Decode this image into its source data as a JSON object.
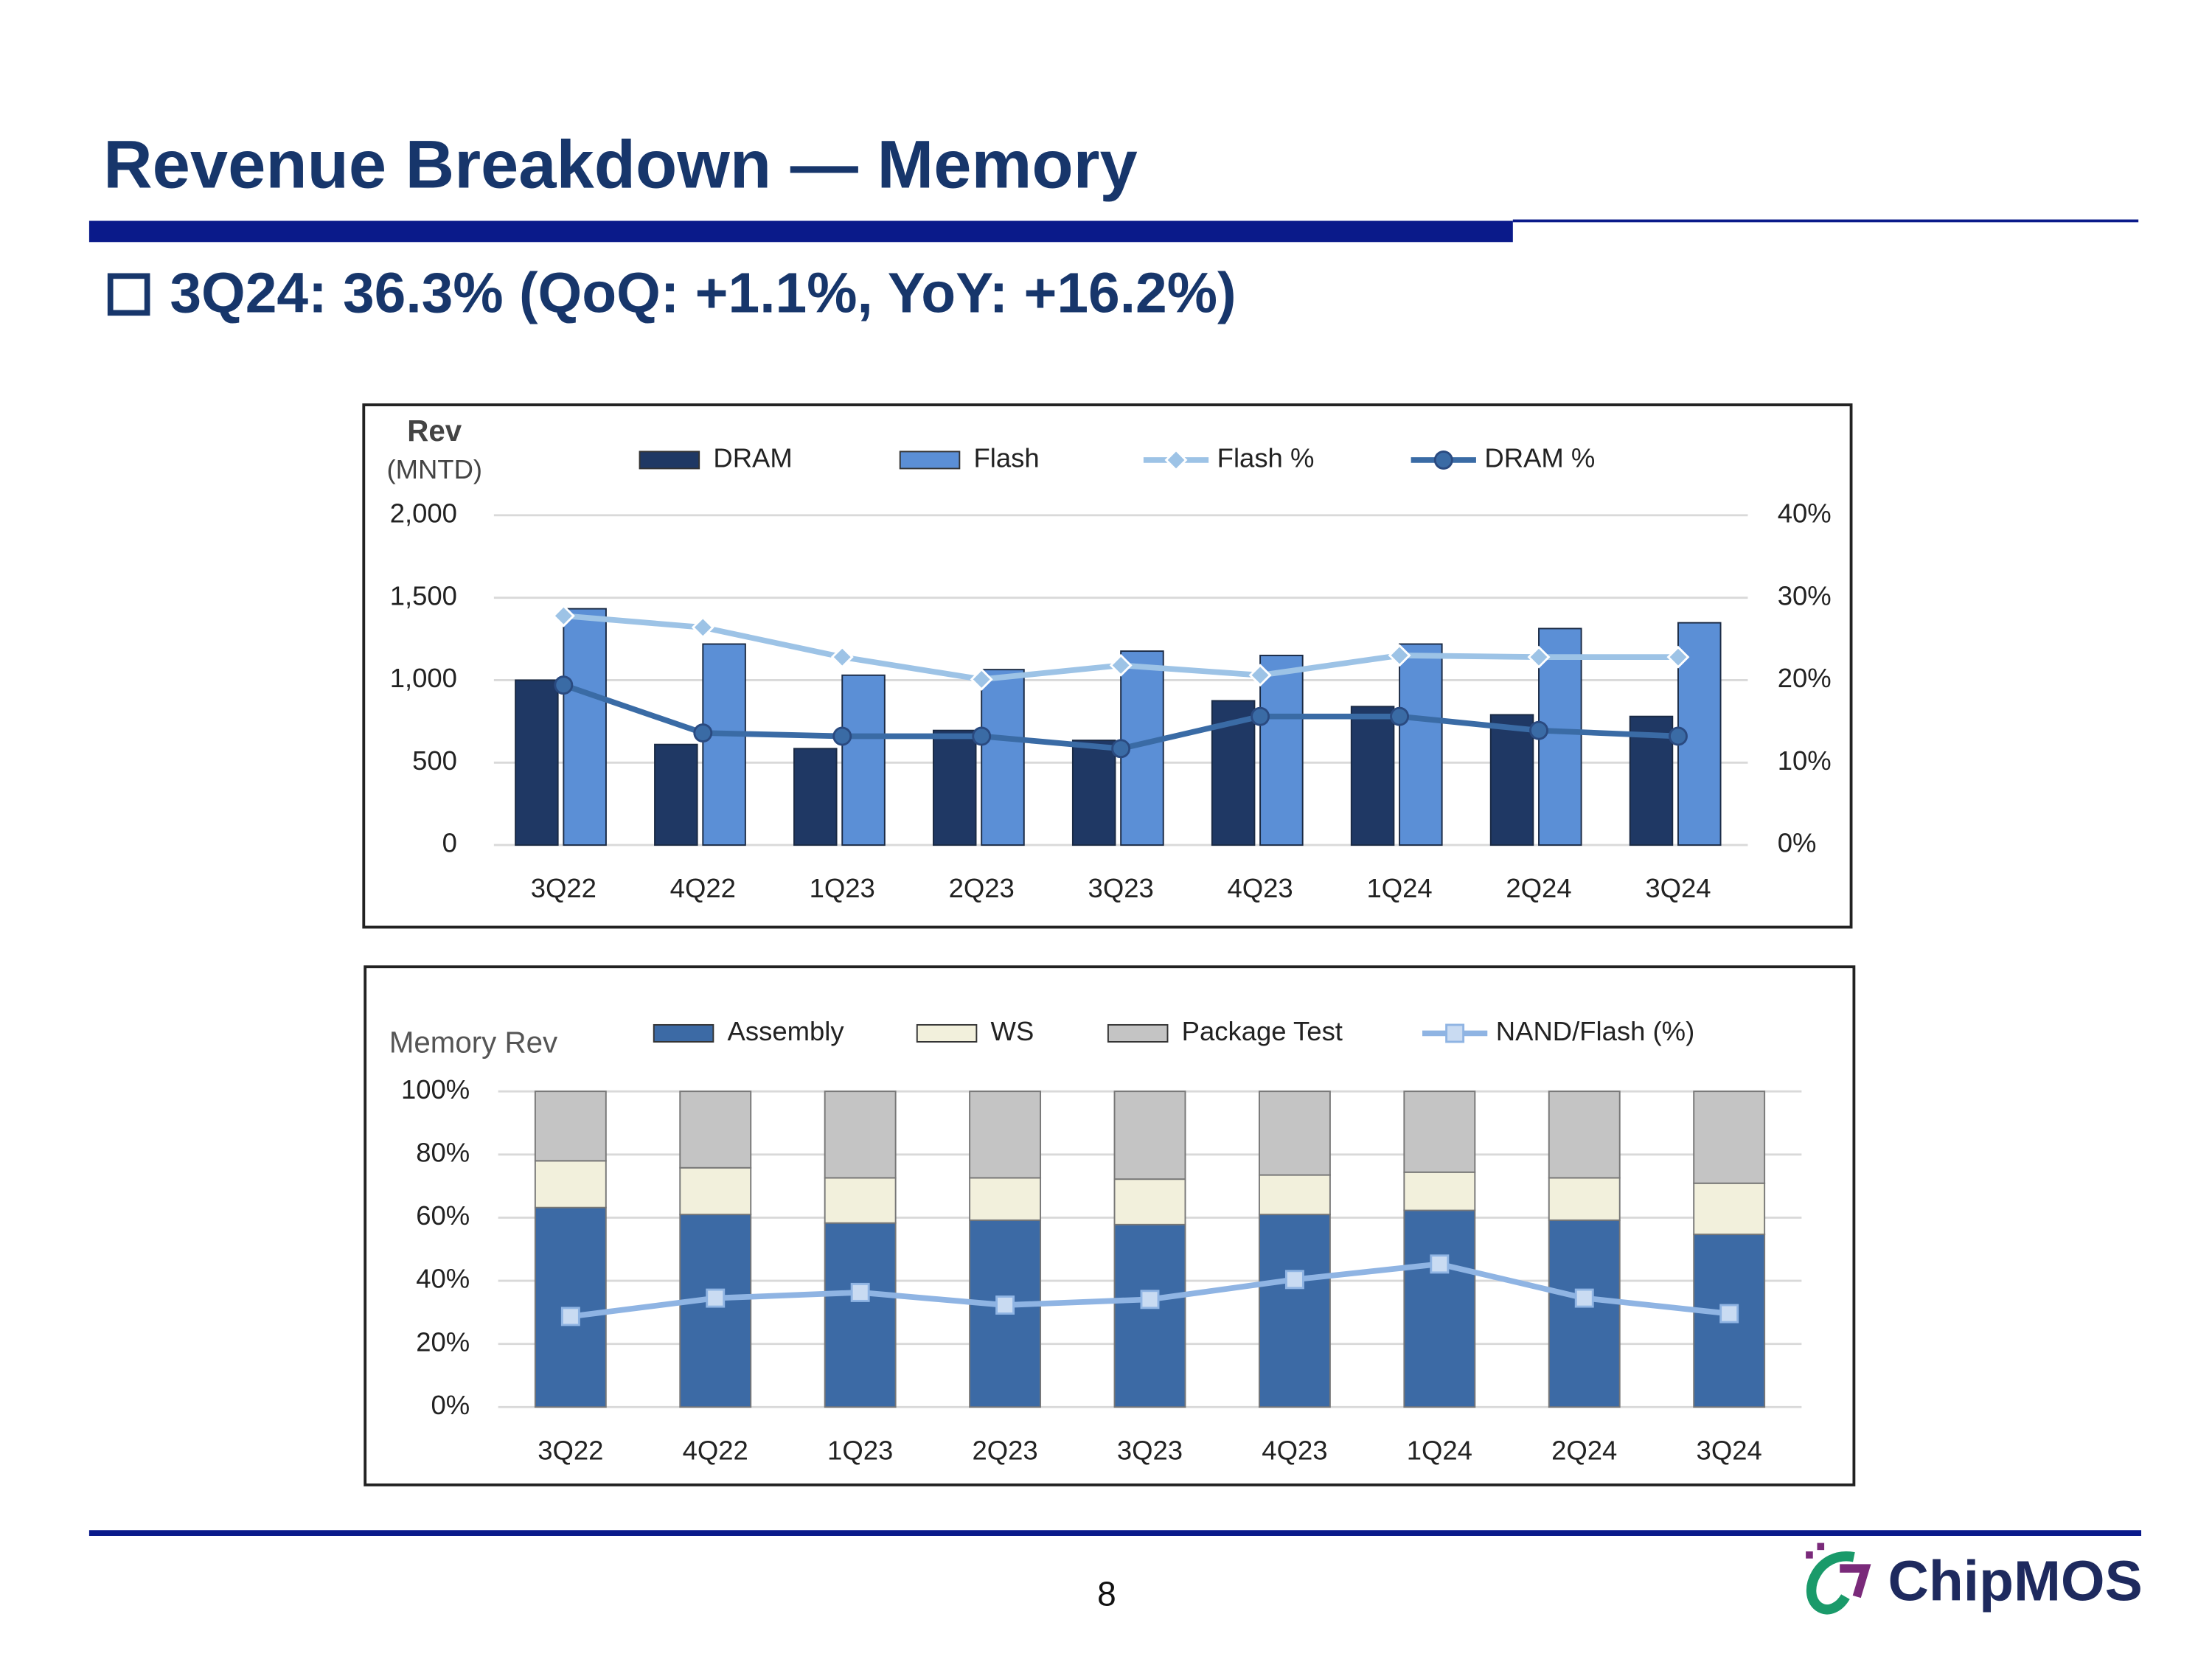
{
  "title": "Revenue Breakdown ― Memory",
  "subtitle": "3Q24: 36.3% (QoQ: +1.1%, YoY: +16.2%)",
  "page_number": "8",
  "logo": "ChipMOS",
  "chart_data": [
    {
      "type": "bar",
      "y_axis_title": "Rev",
      "y_axis_unit": "(MNTD)",
      "categories": [
        "3Q22",
        "4Q22",
        "1Q23",
        "2Q23",
        "3Q23",
        "4Q23",
        "1Q24",
        "2Q24",
        "3Q24"
      ],
      "series": [
        {
          "name": "DRAM",
          "type": "bar",
          "color": "#1f3864",
          "values": [
            1000,
            610,
            585,
            695,
            635,
            875,
            840,
            790,
            780
          ]
        },
        {
          "name": "Flash",
          "type": "bar",
          "color": "#5b8fd6",
          "values": [
            1433,
            1219,
            1030,
            1064,
            1176,
            1150,
            1219,
            1313,
            1348
          ]
        },
        {
          "name": "Flash %",
          "type": "line",
          "axis": "y2",
          "marker": "diamond",
          "color": "#9dc3e6",
          "values": [
            27.8,
            26.4,
            22.8,
            20.1,
            21.8,
            20.6,
            23.0,
            22.8,
            22.8
          ]
        },
        {
          "name": "DRAM %",
          "type": "line",
          "axis": "y2",
          "marker": "circle",
          "color": "#3a6ba5",
          "values": [
            19.4,
            13.6,
            13.2,
            13.2,
            11.7,
            15.6,
            15.6,
            13.9,
            13.2
          ]
        }
      ],
      "ylim": [
        0,
        2000
      ],
      "yticks": [
        0,
        500,
        {
          "value": 1000,
          "label": "1,000"
        },
        {
          "value": 1500,
          "label": "1,500"
        },
        {
          "value": 2000,
          "label": "2,000"
        }
      ],
      "y2lim": [
        0,
        40
      ],
      "y2ticks": [
        {
          "value": 0,
          "label": "0%"
        },
        {
          "value": 10,
          "label": "10%"
        },
        {
          "value": 20,
          "label": "20%"
        },
        {
          "value": 30,
          "label": "30%"
        },
        {
          "value": 40,
          "label": "40%"
        }
      ],
      "grid": true,
      "legend": "top"
    },
    {
      "type": "stacked_bar",
      "y_axis_title": "Memory Rev",
      "categories": [
        "3Q22",
        "4Q22",
        "1Q23",
        "2Q23",
        "3Q23",
        "4Q23",
        "1Q24",
        "2Q24",
        "3Q24"
      ],
      "series": [
        {
          "name": "Assembly",
          "type": "bar",
          "color": "#3c6aa5",
          "values": [
            63.2,
            61.0,
            58.3,
            59.2,
            57.8,
            61.0,
            62.3,
            59.2,
            54.7
          ]
        },
        {
          "name": "WS",
          "type": "bar",
          "color": "#f2f0dc",
          "values": [
            14.8,
            14.8,
            14.3,
            13.4,
            14.4,
            12.5,
            12.1,
            13.4,
            16.2
          ]
        },
        {
          "name": "Package Test",
          "type": "bar",
          "color": "#c4c4c4",
          "values": [
            22.0,
            24.2,
            27.4,
            27.4,
            27.8,
            26.5,
            25.6,
            27.4,
            29.1
          ]
        },
        {
          "name": "NAND/Flash (%)",
          "type": "line",
          "marker": "square",
          "color": "#8fb4e3",
          "values": [
            28.7,
            34.5,
            36.3,
            32.3,
            34.1,
            40.4,
            45.3,
            34.5,
            29.6
          ]
        }
      ],
      "ylim": [
        0,
        100
      ],
      "yticks": [
        {
          "value": 0,
          "label": "0%"
        },
        {
          "value": 20,
          "label": "20%"
        },
        {
          "value": 40,
          "label": "40%"
        },
        {
          "value": 60,
          "label": "60%"
        },
        {
          "value": 80,
          "label": "80%"
        },
        {
          "value": 100,
          "label": "100%"
        }
      ],
      "grid": true,
      "legend": "top"
    }
  ]
}
